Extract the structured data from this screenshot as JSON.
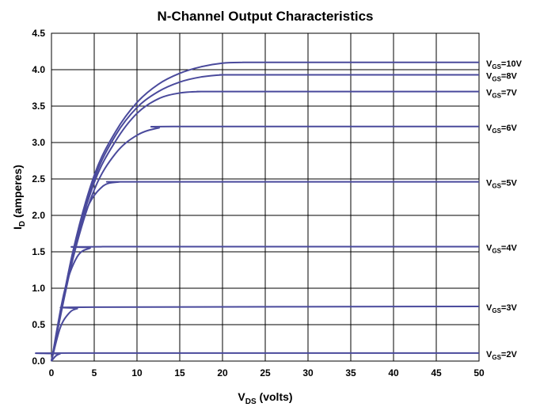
{
  "chart_data": {
    "type": "line",
    "title": "N-Channel Output Characteristics",
    "xlabel": {
      "main": "V",
      "sub": "DS",
      "suffix": " (volts)"
    },
    "ylabel": {
      "main": "I",
      "sub": "D",
      "suffix": " (amperes)"
    },
    "xlim": [
      0,
      50
    ],
    "ylim": [
      0,
      4.5
    ],
    "xticks": [
      "0",
      "5",
      "10",
      "15",
      "20",
      "25",
      "30",
      "35",
      "40",
      "45",
      "50"
    ],
    "yticks": [
      "0.0",
      "0.5",
      "1.0",
      "1.5",
      "2.0",
      "2.5",
      "3.0",
      "3.5",
      "4.0",
      "4.5"
    ],
    "grid": true,
    "line_color": "#4a4a9c",
    "series": [
      {
        "label": {
          "main": "V",
          "sub": "GS",
          "suffix": "=10V"
        },
        "x": [
          0,
          2.5,
          5,
          7.5,
          10,
          12.5,
          15,
          17.5,
          20,
          22.5,
          25,
          50
        ],
        "y": [
          0,
          1.5,
          2.55,
          3.15,
          3.55,
          3.8,
          3.95,
          4.04,
          4.09,
          4.1,
          4.1,
          4.1
        ]
      },
      {
        "label": {
          "main": "V",
          "sub": "GS",
          "suffix": "=8V"
        },
        "x": [
          0,
          2.5,
          5,
          7.5,
          10,
          12.5,
          15,
          17.5,
          20,
          22.5,
          50
        ],
        "y": [
          0,
          1.48,
          2.5,
          3.1,
          3.48,
          3.7,
          3.83,
          3.9,
          3.93,
          3.93,
          3.93
        ]
      },
      {
        "label": {
          "main": "V",
          "sub": "GS",
          "suffix": "=7V"
        },
        "x": [
          0,
          2.5,
          5,
          7.5,
          10,
          12.5,
          15,
          17.5,
          20,
          50
        ],
        "y": [
          0,
          1.45,
          2.45,
          3.02,
          3.4,
          3.6,
          3.68,
          3.7,
          3.7,
          3.7
        ]
      },
      {
        "label": {
          "main": "V",
          "sub": "GS",
          "suffix": "=6V"
        },
        "x": [
          0,
          2.5,
          5,
          7.5,
          10,
          12.5,
          15,
          50
        ],
        "y": [
          0,
          1.4,
          2.35,
          2.85,
          3.1,
          3.2,
          3.22,
          3.22
        ]
      },
      {
        "label": {
          "main": "V",
          "sub": "GS",
          "suffix": "=5V"
        },
        "x": [
          0,
          2,
          4,
          6,
          8,
          10,
          50
        ],
        "y": [
          0,
          1.2,
          2.05,
          2.4,
          2.46,
          2.46,
          2.46
        ]
      },
      {
        "label": {
          "main": "V",
          "sub": "GS",
          "suffix": "=4V"
        },
        "x": [
          0,
          1.5,
          3,
          4.5,
          6,
          50
        ],
        "y": [
          0,
          0.95,
          1.43,
          1.55,
          1.57,
          1.57
        ]
      },
      {
        "label": {
          "main": "V",
          "sub": "GS",
          "suffix": "=3V"
        },
        "x": [
          0,
          1,
          2,
          3,
          5,
          50
        ],
        "y": [
          0,
          0.45,
          0.65,
          0.72,
          0.74,
          0.75
        ]
      },
      {
        "label": {
          "main": "V",
          "sub": "GS",
          "suffix": "=2V"
        },
        "x": [
          0,
          0.5,
          1,
          2,
          50
        ],
        "y": [
          0,
          0.07,
          0.1,
          0.11,
          0.11
        ]
      }
    ]
  }
}
